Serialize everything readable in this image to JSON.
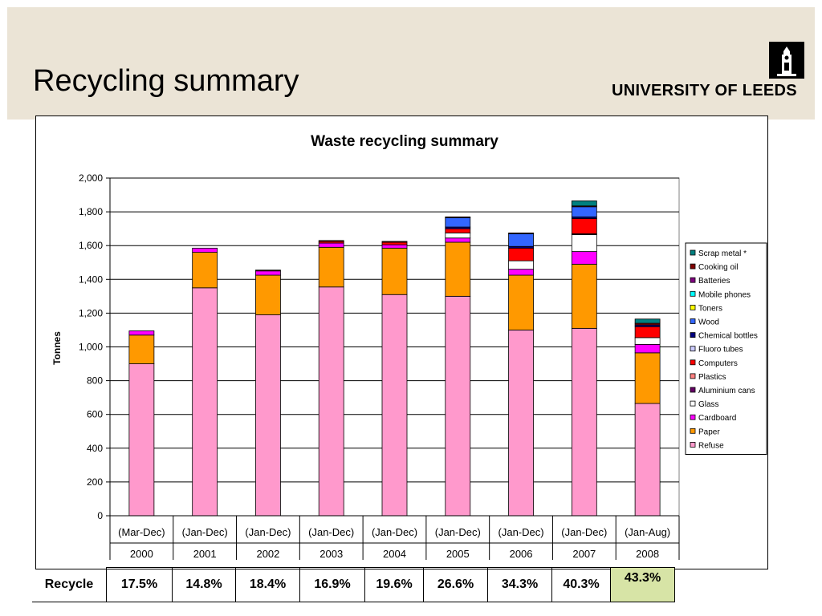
{
  "slide": {
    "title": "Recycling summary",
    "logo_text": "UNIVERSITY OF LEEDS"
  },
  "recycle_row": {
    "label": "Recycle",
    "values": [
      "17.5%",
      "14.8%",
      "18.4%",
      "16.9%",
      "19.6%",
      "26.6%",
      "34.3%",
      "40.3%",
      "43.3%"
    ]
  },
  "colors": {
    "header_band": "#ebe4d6",
    "highlight_cell": "#d7e4a6"
  },
  "chart_data": {
    "type": "bar",
    "stacked": true,
    "title": "Waste recycling summary",
    "ylabel": "Tonnes",
    "xlabel": "",
    "ylim": [
      0,
      2000
    ],
    "yticks": [
      0,
      200,
      400,
      600,
      800,
      1000,
      1200,
      1400,
      1600,
      1800,
      2000
    ],
    "ytick_labels": [
      "0",
      "200",
      "400",
      "600",
      "800",
      "1,000",
      "1,200",
      "1,400",
      "1,600",
      "1,800",
      "2,000"
    ],
    "grid": "horizontal",
    "legend_position": "right",
    "categories": [
      "2000",
      "2001",
      "2002",
      "2003",
      "2004",
      "2005",
      "2006",
      "2007",
      "2008"
    ],
    "category_periods": [
      "(Mar-Dec)",
      "(Jan-Dec)",
      "(Jan-Dec)",
      "(Jan-Dec)",
      "(Jan-Dec)",
      "(Jan-Dec)",
      "(Jan-Dec)",
      "(Jan-Dec)",
      "(Jan-Aug)"
    ],
    "series": [
      {
        "name": "Refuse",
        "color": "#ff99cc",
        "values": [
          900,
          1350,
          1190,
          1355,
          1310,
          1300,
          1100,
          1110,
          665
        ]
      },
      {
        "name": "Paper",
        "color": "#ff9900",
        "values": [
          170,
          210,
          235,
          235,
          275,
          320,
          325,
          380,
          300
        ]
      },
      {
        "name": "Cardboard",
        "color": "#ff00ff",
        "values": [
          25,
          25,
          25,
          25,
          20,
          25,
          35,
          75,
          50
        ]
      },
      {
        "name": "Glass",
        "color": "#ffffff",
        "values": [
          0,
          0,
          0,
          0,
          0,
          30,
          50,
          100,
          40
        ]
      },
      {
        "name": "Aluminium cans",
        "color": "#660066",
        "values": [
          0,
          0,
          0,
          0,
          0,
          0,
          0,
          5,
          0
        ]
      },
      {
        "name": "Plastics",
        "color": "#ff8080",
        "values": [
          0,
          0,
          0,
          0,
          0,
          0,
          0,
          0,
          0
        ]
      },
      {
        "name": "Computers",
        "color": "#ff0000",
        "values": [
          0,
          0,
          0,
          10,
          15,
          25,
          75,
          90,
          65
        ]
      },
      {
        "name": "Fluoro tubes",
        "color": "#ccccff",
        "values": [
          0,
          0,
          0,
          0,
          0,
          0,
          0,
          0,
          0
        ]
      },
      {
        "name": "Chemical bottles",
        "color": "#000080",
        "values": [
          0,
          0,
          0,
          0,
          0,
          10,
          10,
          10,
          10
        ]
      },
      {
        "name": "Wood",
        "color": "#3366ff",
        "values": [
          0,
          0,
          0,
          0,
          0,
          55,
          75,
          60,
          0
        ]
      },
      {
        "name": "Toners",
        "color": "#ffff00",
        "values": [
          0,
          0,
          0,
          0,
          0,
          0,
          0,
          0,
          0
        ]
      },
      {
        "name": "Mobile phones",
        "color": "#00ffff",
        "values": [
          0,
          0,
          0,
          0,
          0,
          0,
          0,
          0,
          0
        ]
      },
      {
        "name": "Batteries",
        "color": "#800080",
        "values": [
          0,
          0,
          0,
          0,
          0,
          0,
          0,
          0,
          0
        ]
      },
      {
        "name": "Cooking oil",
        "color": "#800000",
        "values": [
          0,
          0,
          5,
          5,
          5,
          5,
          5,
          5,
          10
        ]
      },
      {
        "name": "Scrap metal *",
        "color": "#008080",
        "values": [
          0,
          0,
          0,
          0,
          0,
          0,
          0,
          30,
          25
        ]
      }
    ]
  }
}
